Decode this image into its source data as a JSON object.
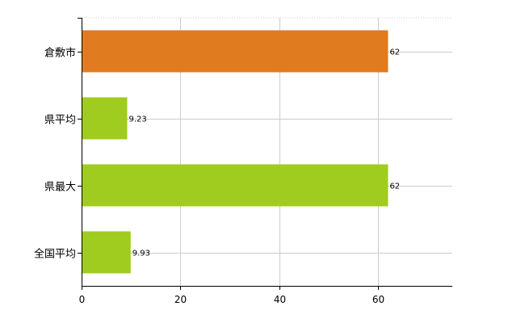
{
  "chart_data": {
    "type": "bar",
    "orientation": "horizontal",
    "categories": [
      "倉敷市",
      "県平均",
      "県最大",
      "全国平均"
    ],
    "values": [
      62,
      9.23,
      62,
      9.93
    ],
    "data_labels": [
      "62",
      "9.23",
      "62",
      "9.93"
    ],
    "xlim": [
      0,
      75
    ],
    "xticks": [
      0,
      20,
      40,
      60
    ],
    "tick_labels": [
      "0",
      "20",
      "40",
      "60"
    ],
    "grid": true,
    "colors": {
      "highlight": "#e07b1f",
      "default": "#9fcc1e",
      "grid": "#cccccc",
      "axis": "#000000"
    },
    "highlight_index": 0
  }
}
